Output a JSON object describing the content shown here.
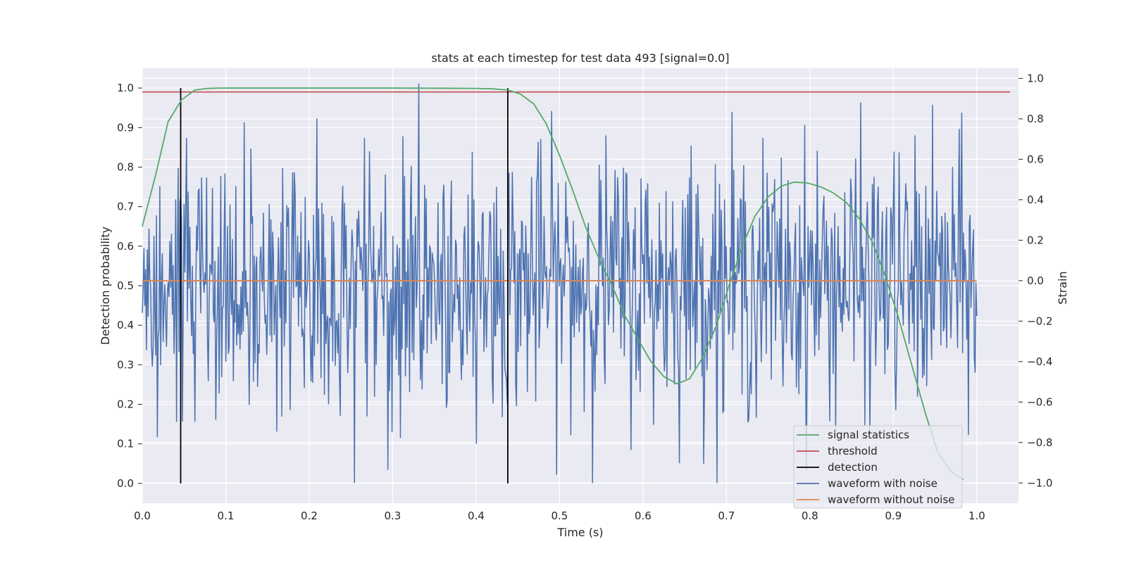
{
  "chart_data": {
    "type": "line",
    "title": "stats at each timestep for test data 493 [signal=0.0]",
    "xlabel": "Time (s)",
    "ylabel": "Detection probability",
    "y2label": "Strain",
    "xlim": [
      0.0,
      1.05
    ],
    "ylim": [
      -0.05,
      1.05
    ],
    "y2lim": [
      -1.1,
      1.05
    ],
    "xticks": [
      "0.0",
      "0.1",
      "0.2",
      "0.3",
      "0.4",
      "0.5",
      "0.6",
      "0.7",
      "0.8",
      "0.9",
      "1.0"
    ],
    "yticks": [
      "0.0",
      "0.1",
      "0.2",
      "0.3",
      "0.4",
      "0.5",
      "0.6",
      "0.7",
      "0.8",
      "0.9",
      "1.0"
    ],
    "y2ticks": [
      "−1.0",
      "−0.8",
      "−0.6",
      "−0.4",
      "−0.2",
      "0.0",
      "0.2",
      "0.4",
      "0.6",
      "0.8",
      "1.0"
    ],
    "grid": true,
    "legend_position": "bottom-right",
    "colors": {
      "signal_statistics": "#55a868",
      "threshold": "#c44e52",
      "detection": "#000000",
      "waveform_with_noise": "#4c72b0",
      "waveform_without_noise": "#dd8452",
      "plot_background": "#eaeaf2",
      "grid": "#ffffff"
    },
    "series": [
      {
        "name": "signal statistics",
        "axis": "left",
        "x": [
          0.0,
          0.016,
          0.031,
          0.047,
          0.063,
          0.078,
          0.094,
          0.11,
          0.2,
          0.3,
          0.4,
          0.42,
          0.438,
          0.453,
          0.469,
          0.484,
          0.5,
          0.516,
          0.531,
          0.547,
          0.563,
          0.578,
          0.594,
          0.609,
          0.625,
          0.641,
          0.656,
          0.672,
          0.688,
          0.703,
          0.719,
          0.734,
          0.75,
          0.766,
          0.781,
          0.797,
          0.813,
          0.828,
          0.844,
          0.859,
          0.875,
          0.891,
          0.906,
          0.922,
          0.938,
          0.953,
          0.969,
          0.984
        ],
        "values": [
          0.65,
          0.78,
          0.915,
          0.97,
          0.995,
          0.999,
          1.0,
          1.0,
          1.0,
          1.0,
          0.999,
          0.998,
          0.995,
          0.985,
          0.96,
          0.91,
          0.83,
          0.74,
          0.65,
          0.57,
          0.5,
          0.425,
          0.365,
          0.31,
          0.27,
          0.252,
          0.265,
          0.32,
          0.4,
          0.5,
          0.6,
          0.675,
          0.725,
          0.752,
          0.762,
          0.76,
          0.75,
          0.735,
          0.71,
          0.67,
          0.61,
          0.52,
          0.42,
          0.3,
          0.18,
          0.08,
          0.03,
          0.01
        ]
      },
      {
        "name": "threshold",
        "axis": "left",
        "x": [
          0.0,
          1.04
        ],
        "values": [
          0.99,
          0.99
        ]
      },
      {
        "name": "detection",
        "axis": "left",
        "type": "vlines",
        "x": [
          0.046,
          0.438
        ],
        "ymin": 0.0,
        "ymax": 1.0
      },
      {
        "name": "waveform with noise",
        "axis": "right",
        "x_range": [
          0.0,
          1.0
        ],
        "n_points": 1000,
        "distribution": "random noise, approximately normal, mean 0.0, std 0.32, bounded within [-1.0, 1.0]"
      },
      {
        "name": "waveform without noise",
        "axis": "right",
        "x": [
          0.0,
          1.0
        ],
        "values": [
          0.0,
          0.0
        ]
      }
    ]
  }
}
